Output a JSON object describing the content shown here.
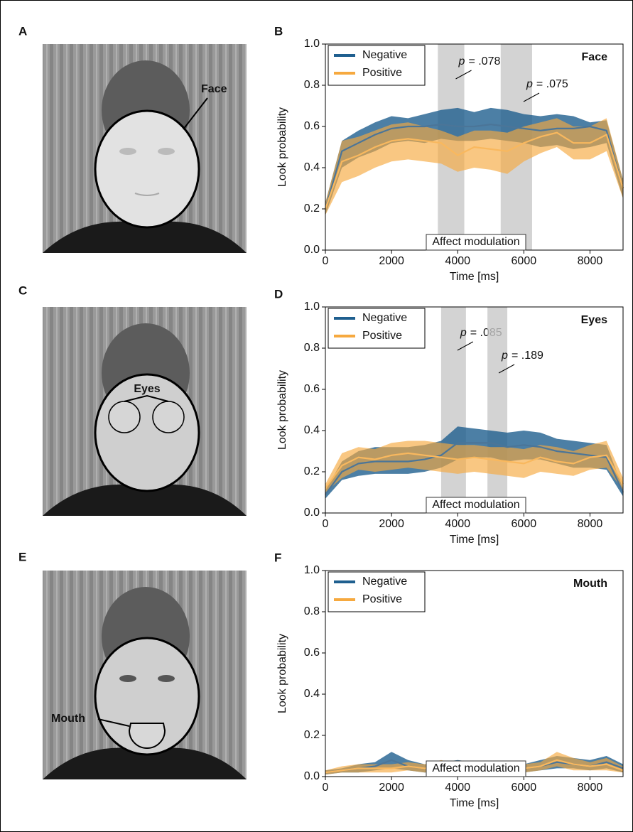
{
  "images": [
    {
      "panel": "A",
      "roi_label": "Face"
    },
    {
      "panel": "C",
      "roi_label": "Eyes"
    },
    {
      "panel": "E",
      "roi_label": "Mouth"
    }
  ],
  "chart_data": [
    {
      "type": "line",
      "panel": "B",
      "title": "Face",
      "xlabel": "Time [ms]",
      "ylabel": "Look probability",
      "xlim": [
        0,
        9000
      ],
      "ylim": [
        0,
        1
      ],
      "xticks": [
        0,
        2000,
        4000,
        6000,
        8000
      ],
      "yticks": [
        {
          "value": 0,
          "label": "0.0"
        },
        {
          "value": 0.2,
          "label": "0.2"
        },
        {
          "value": 0.4,
          "label": "0.4"
        },
        {
          "value": 0.6,
          "label": "0.6"
        },
        {
          "value": 0.8,
          "label": "0.8"
        },
        {
          "value": 1,
          "label": "1.0"
        }
      ],
      "legend": "upper left",
      "box_label": "Affect modulation",
      "spans": [
        {
          "x": [
            3400,
            4200
          ],
          "p_symbol": "p",
          "p_text": "= .078"
        },
        {
          "x": [
            5300,
            6250
          ],
          "p_symbol": "p",
          "p_text": "= .075"
        }
      ],
      "x": [
        0,
        500,
        1000,
        1500,
        2000,
        2500,
        3000,
        3500,
        4000,
        4500,
        5000,
        5500,
        6000,
        6500,
        7000,
        7500,
        8000,
        8500,
        9000
      ],
      "series": [
        {
          "name": "Negative",
          "color": "#1f5f8f",
          "values": [
            0.2,
            0.48,
            0.52,
            0.56,
            0.59,
            0.6,
            0.6,
            0.61,
            0.6,
            0.6,
            0.61,
            0.6,
            0.59,
            0.58,
            0.59,
            0.59,
            0.6,
            0.58,
            0.3
          ],
          "lower": [
            0.17,
            0.4,
            0.45,
            0.48,
            0.52,
            0.53,
            0.52,
            0.54,
            0.53,
            0.53,
            0.54,
            0.53,
            0.52,
            0.5,
            0.51,
            0.49,
            0.5,
            0.52,
            0.25
          ],
          "upper": [
            0.23,
            0.53,
            0.58,
            0.62,
            0.65,
            0.64,
            0.66,
            0.68,
            0.69,
            0.67,
            0.69,
            0.68,
            0.66,
            0.65,
            0.66,
            0.65,
            0.62,
            0.63,
            0.34
          ]
        },
        {
          "name": "Positive",
          "color": "#f6a93f",
          "values": [
            0.2,
            0.43,
            0.46,
            0.5,
            0.53,
            0.54,
            0.53,
            0.52,
            0.46,
            0.5,
            0.49,
            0.48,
            0.52,
            0.55,
            0.57,
            0.52,
            0.52,
            0.56,
            0.3
          ],
          "lower": [
            0.17,
            0.33,
            0.36,
            0.4,
            0.43,
            0.44,
            0.43,
            0.42,
            0.38,
            0.4,
            0.39,
            0.37,
            0.43,
            0.47,
            0.5,
            0.44,
            0.44,
            0.48,
            0.25
          ],
          "upper": [
            0.23,
            0.53,
            0.55,
            0.58,
            0.61,
            0.62,
            0.6,
            0.58,
            0.55,
            0.58,
            0.58,
            0.57,
            0.6,
            0.62,
            0.64,
            0.6,
            0.6,
            0.64,
            0.34
          ]
        }
      ]
    },
    {
      "type": "line",
      "panel": "D",
      "title": "Eyes",
      "xlabel": "Time [ms]",
      "ylabel": "Look probability",
      "xlim": [
        0,
        9000
      ],
      "ylim": [
        0,
        1
      ],
      "xticks": [
        0,
        2000,
        4000,
        6000,
        8000
      ],
      "yticks": [
        {
          "value": 0,
          "label": "0.0"
        },
        {
          "value": 0.2,
          "label": "0.2"
        },
        {
          "value": 0.4,
          "label": "0.4"
        },
        {
          "value": 0.6,
          "label": "0.6"
        },
        {
          "value": 0.8,
          "label": "0.8"
        },
        {
          "value": 1,
          "label": "1.0"
        }
      ],
      "legend": "upper left",
      "box_label": "Affect modulation",
      "spans": [
        {
          "x": [
            3500,
            4250
          ],
          "p_symbol": "p",
          "p_text": "= .085"
        },
        {
          "x": [
            4900,
            5500
          ],
          "p_symbol": "p",
          "p_text": "= .189"
        }
      ],
      "x": [
        0,
        500,
        1000,
        1500,
        2000,
        2500,
        3000,
        3500,
        4000,
        4500,
        5000,
        5500,
        6000,
        6500,
        7000,
        7500,
        8000,
        8500,
        9000
      ],
      "series": [
        {
          "name": "Negative",
          "color": "#1f5f8f",
          "values": [
            0.09,
            0.2,
            0.24,
            0.25,
            0.25,
            0.25,
            0.26,
            0.28,
            0.34,
            0.34,
            0.34,
            0.32,
            0.33,
            0.32,
            0.3,
            0.29,
            0.28,
            0.27,
            0.1
          ],
          "lower": [
            0.07,
            0.16,
            0.18,
            0.19,
            0.19,
            0.19,
            0.2,
            0.22,
            0.26,
            0.27,
            0.27,
            0.25,
            0.26,
            0.26,
            0.24,
            0.22,
            0.22,
            0.21,
            0.08
          ],
          "upper": [
            0.11,
            0.25,
            0.3,
            0.32,
            0.32,
            0.32,
            0.33,
            0.35,
            0.42,
            0.41,
            0.4,
            0.39,
            0.4,
            0.39,
            0.36,
            0.35,
            0.34,
            0.33,
            0.12
          ]
        },
        {
          "name": "Positive",
          "color": "#f6a93f",
          "values": [
            0.12,
            0.23,
            0.27,
            0.26,
            0.28,
            0.29,
            0.28,
            0.27,
            0.26,
            0.27,
            0.26,
            0.25,
            0.24,
            0.27,
            0.25,
            0.24,
            0.27,
            0.28,
            0.14
          ],
          "lower": [
            0.1,
            0.17,
            0.21,
            0.2,
            0.21,
            0.22,
            0.21,
            0.2,
            0.19,
            0.2,
            0.19,
            0.18,
            0.17,
            0.2,
            0.19,
            0.18,
            0.21,
            0.22,
            0.11
          ],
          "upper": [
            0.14,
            0.29,
            0.32,
            0.31,
            0.34,
            0.35,
            0.35,
            0.34,
            0.33,
            0.33,
            0.32,
            0.32,
            0.31,
            0.33,
            0.32,
            0.3,
            0.33,
            0.35,
            0.17
          ]
        }
      ]
    },
    {
      "type": "line",
      "panel": "F",
      "title": "Mouth",
      "xlabel": "Time [ms]",
      "ylabel": "Look probability",
      "xlim": [
        0,
        9000
      ],
      "ylim": [
        0,
        1
      ],
      "xticks": [
        0,
        2000,
        4000,
        6000,
        8000
      ],
      "yticks": [
        {
          "value": 0,
          "label": "0.0"
        },
        {
          "value": 0.2,
          "label": "0.2"
        },
        {
          "value": 0.4,
          "label": "0.4"
        },
        {
          "value": 0.6,
          "label": "0.6"
        },
        {
          "value": 0.8,
          "label": "0.8"
        },
        {
          "value": 1,
          "label": "1.0"
        }
      ],
      "legend": "upper left",
      "box_label": "Affect modulation",
      "spans": [],
      "x": [
        0,
        500,
        1000,
        1500,
        2000,
        2500,
        3000,
        3500,
        4000,
        4500,
        5000,
        5500,
        6000,
        6500,
        7000,
        7500,
        8000,
        8500,
        9000
      ],
      "series": [
        {
          "name": "Negative",
          "color": "#1f5f8f",
          "values": [
            0.02,
            0.03,
            0.04,
            0.05,
            0.08,
            0.05,
            0.04,
            0.04,
            0.05,
            0.05,
            0.04,
            0.03,
            0.04,
            0.05,
            0.07,
            0.06,
            0.05,
            0.07,
            0.04
          ],
          "lower": [
            0.01,
            0.02,
            0.02,
            0.03,
            0.04,
            0.03,
            0.02,
            0.02,
            0.03,
            0.03,
            0.02,
            0.02,
            0.02,
            0.03,
            0.04,
            0.04,
            0.03,
            0.04,
            0.02
          ],
          "upper": [
            0.03,
            0.04,
            0.06,
            0.07,
            0.12,
            0.08,
            0.06,
            0.07,
            0.08,
            0.07,
            0.06,
            0.05,
            0.06,
            0.08,
            0.1,
            0.09,
            0.08,
            0.1,
            0.06
          ]
        },
        {
          "name": "Positive",
          "color": "#f6a93f",
          "values": [
            0.02,
            0.03,
            0.04,
            0.04,
            0.04,
            0.05,
            0.04,
            0.05,
            0.04,
            0.03,
            0.03,
            0.03,
            0.04,
            0.05,
            0.08,
            0.06,
            0.05,
            0.06,
            0.03
          ],
          "lower": [
            0.01,
            0.02,
            0.02,
            0.02,
            0.02,
            0.03,
            0.02,
            0.03,
            0.02,
            0.01,
            0.01,
            0.02,
            0.02,
            0.03,
            0.05,
            0.03,
            0.03,
            0.03,
            0.02
          ],
          "upper": [
            0.03,
            0.05,
            0.06,
            0.06,
            0.06,
            0.07,
            0.06,
            0.08,
            0.06,
            0.05,
            0.05,
            0.05,
            0.06,
            0.07,
            0.12,
            0.09,
            0.07,
            0.09,
            0.05
          ]
        }
      ]
    }
  ]
}
